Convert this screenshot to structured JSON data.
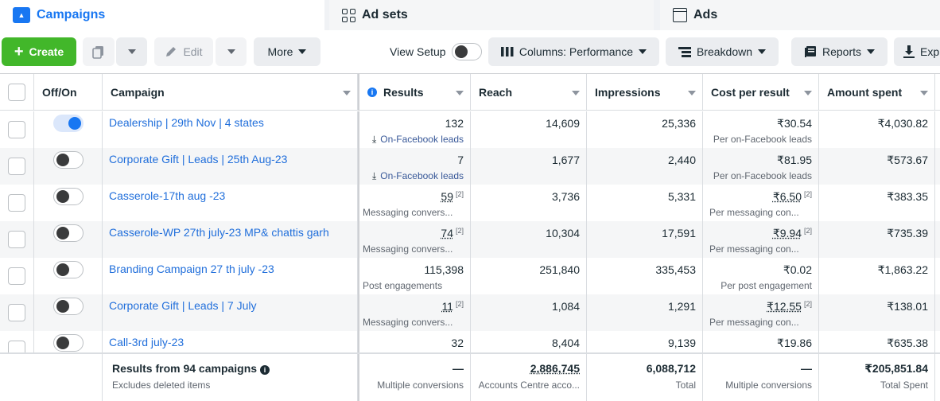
{
  "tabs": [
    {
      "label": "Campaigns",
      "icon": "campaign-icon",
      "active": true
    },
    {
      "label": "Ad sets",
      "icon": "adsets-grid-icon",
      "active": false
    },
    {
      "label": "Ads",
      "icon": "ads-icon",
      "active": false
    }
  ],
  "toolbar": {
    "create_label": "Create",
    "edit_label": "Edit",
    "more_label": "More",
    "view_setup_label": "View Setup",
    "columns_label": "Columns: Performance",
    "breakdown_label": "Breakdown",
    "reports_label": "Reports",
    "export_label": "Exp"
  },
  "columns": {
    "offon": "Off/On",
    "campaign": "Campaign",
    "results": "Results",
    "reach": "Reach",
    "impressions": "Impressions",
    "cost_per_result": "Cost per result",
    "amount_spent": "Amount spent"
  },
  "rows": [
    {
      "name": "Dealership | 29th Nov | 4 states",
      "on": true,
      "results": "132",
      "results_sup": "",
      "results_sub": "On-Facebook leads",
      "results_sub_link": true,
      "reach": "14,609",
      "impressions": "25,336",
      "cpr": "₹30.54",
      "cpr_sup": "",
      "cpr_sub": "Per on-Facebook leads",
      "spent": "₹4,030.82"
    },
    {
      "name": "Corporate Gift | Leads | 25th Aug-23",
      "on": false,
      "results": "7",
      "results_sup": "",
      "results_sub": "On-Facebook leads",
      "results_sub_link": true,
      "reach": "1,677",
      "impressions": "2,440",
      "cpr": "₹81.95",
      "cpr_sup": "",
      "cpr_sub": "Per on-Facebook leads",
      "spent": "₹573.67"
    },
    {
      "name": "Casserole-17th aug -23",
      "on": false,
      "results": "59",
      "results_sup": "[2]",
      "results_sub": "Messaging convers...",
      "results_sub_link": false,
      "reach": "3,736",
      "impressions": "5,331",
      "cpr": "₹6.50",
      "cpr_sup": "[2]",
      "cpr_sub": "Per messaging con...",
      "spent": "₹383.35"
    },
    {
      "name": "Casserole-WP 27th july-23 MP& chattis garh",
      "on": false,
      "results": "74",
      "results_sup": "[2]",
      "results_sub": "Messaging convers...",
      "results_sub_link": false,
      "reach": "10,304",
      "impressions": "17,591",
      "cpr": "₹9.94",
      "cpr_sup": "[2]",
      "cpr_sub": "Per messaging con...",
      "spent": "₹735.39"
    },
    {
      "name": "Branding Campaign 27 th july -23",
      "on": false,
      "results": "115,398",
      "results_sup": "",
      "results_sub": "Post engagements",
      "results_sub_link": false,
      "reach": "251,840",
      "impressions": "335,453",
      "cpr": "₹0.02",
      "cpr_sup": "",
      "cpr_sub": "Per post engagement",
      "spent": "₹1,863.22"
    },
    {
      "name": "Corporate Gift | Leads | 7 July",
      "on": false,
      "results": "11",
      "results_sup": "[2]",
      "results_sub": "Messaging convers...",
      "results_sub_link": false,
      "reach": "1,084",
      "impressions": "1,291",
      "cpr": "₹12.55",
      "cpr_sup": "[2]",
      "cpr_sub": "Per messaging con...",
      "spent": "₹138.01"
    },
    {
      "name": "Call-3rd july-23",
      "on": false,
      "results": "32",
      "results_sup": "",
      "results_sub": "",
      "results_sub_link": false,
      "reach": "8,404",
      "impressions": "9,139",
      "cpr": "₹19.86",
      "cpr_sup": "",
      "cpr_sub": "",
      "spent": "₹635.38"
    }
  ],
  "footer": {
    "title": "Results from 94 campaigns",
    "subtitle": "Excludes deleted items",
    "results": "—",
    "results_sub": "Multiple conversions",
    "reach": "2,886,745",
    "reach_sub": "Accounts Centre acco...",
    "impressions": "6,088,712",
    "impressions_sub": "Total",
    "cpr": "—",
    "cpr_sub": "Multiple conversions",
    "spent": "₹205,851.84",
    "spent_sub": "Total Spent"
  },
  "colors": {
    "accent": "#1877f2",
    "create": "#42b72a",
    "link": "#216fdb"
  }
}
